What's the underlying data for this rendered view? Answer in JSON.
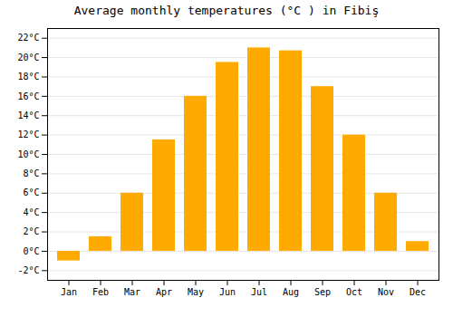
{
  "chart_data": {
    "type": "bar",
    "title": "Average monthly temperatures (°C ) in Fibiş",
    "categories": [
      "Jan",
      "Feb",
      "Mar",
      "Apr",
      "May",
      "Jun",
      "Jul",
      "Aug",
      "Sep",
      "Oct",
      "Nov",
      "Dec"
    ],
    "values": [
      -1.0,
      1.5,
      6.0,
      11.5,
      16.0,
      19.5,
      21.0,
      20.7,
      17.0,
      12.0,
      6.0,
      1.0
    ],
    "color": "#FFAA00",
    "ylim": [
      -3,
      23
    ],
    "yticks": [
      {
        "value": -2,
        "label": "-2°C"
      },
      {
        "value": 0,
        "label": "0°C"
      },
      {
        "value": 2,
        "label": "2°C"
      },
      {
        "value": 4,
        "label": "4°C"
      },
      {
        "value": 6,
        "label": "6°C"
      },
      {
        "value": 8,
        "label": "8°C"
      },
      {
        "value": 10,
        "label": "10°C"
      },
      {
        "value": 12,
        "label": "12°C"
      },
      {
        "value": 14,
        "label": "14°C"
      },
      {
        "value": 16,
        "label": "16°C"
      },
      {
        "value": 18,
        "label": "18°C"
      },
      {
        "value": 20,
        "label": "20°C"
      },
      {
        "value": 22,
        "label": "22°C"
      }
    ],
    "grid": true
  }
}
